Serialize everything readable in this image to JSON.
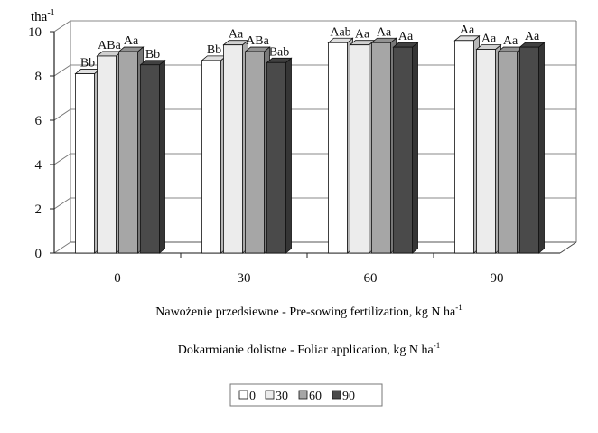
{
  "chart_data": {
    "type": "bar",
    "title": "",
    "ylabel": "tha",
    "ylabel_superscript": "-1",
    "xlabel_line1": "Nawożenie przedsiewne - Pre-sowing fertilization, kg N ha",
    "xlabel_line1_sup": "-1",
    "xlabel_line2": "Dokarmianie dolistne - Foliar application, kg N ha",
    "xlabel_line2_sup": "-1",
    "categories": [
      "0",
      "30",
      "60",
      "90"
    ],
    "yticks": [
      "0",
      "2",
      "4",
      "6",
      "8",
      "10"
    ],
    "ylim": [
      0,
      10
    ],
    "grid": true,
    "legend_position": "bottom-center",
    "colors": [
      "#ffffff",
      "#ececec",
      "#a6a6a6",
      "#4a4a4a"
    ],
    "series": [
      {
        "name": "0",
        "values": [
          8.1,
          8.7,
          9.5,
          9.6
        ],
        "labels": [
          "Bb",
          "Bb",
          "Aab",
          "Aa"
        ]
      },
      {
        "name": "30",
        "values": [
          8.9,
          9.4,
          9.4,
          9.2
        ],
        "labels": [
          "ABa",
          "Aa",
          "Aa",
          "Aa"
        ]
      },
      {
        "name": "60",
        "values": [
          9.1,
          9.1,
          9.5,
          9.1
        ],
        "labels": [
          "Aa",
          "ABa",
          "Aa",
          "Aa"
        ]
      },
      {
        "name": "90",
        "values": [
          8.5,
          8.6,
          9.3,
          9.3
        ],
        "labels": [
          "Bb",
          "Bab",
          "Aa",
          "Aa"
        ]
      }
    ]
  }
}
